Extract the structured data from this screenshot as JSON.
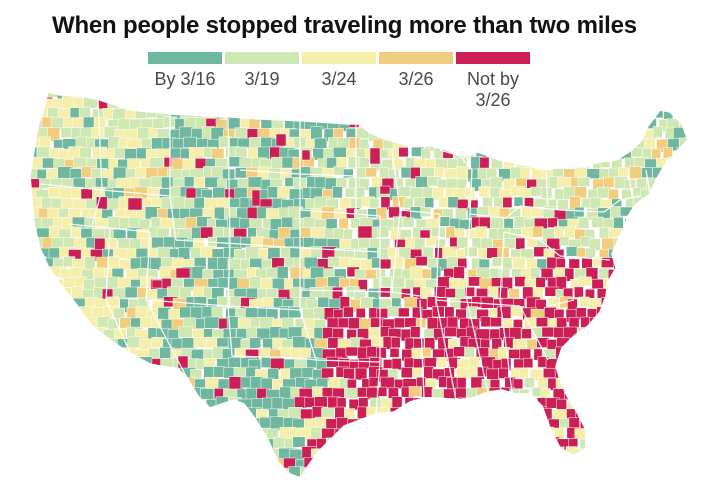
{
  "title": "When people stopped traveling more than two miles",
  "legend": [
    {
      "label": "By 3/16",
      "color": "#6fb79e"
    },
    {
      "label": "3/19",
      "color": "#cfe7b3"
    },
    {
      "label": "3/24",
      "color": "#f6eeab"
    },
    {
      "label": "3/26",
      "color": "#f2cd7e"
    },
    {
      "label": "Not by\n3/26",
      "color": "#cc1f56"
    }
  ],
  "map": {
    "region": "contiguous United States",
    "unit": "county",
    "colors": {
      "by_3_16": "#6fb79e",
      "by_3_19": "#cfe7b3",
      "by_3_24": "#f6eeab",
      "by_3_26": "#f2cd7e",
      "not_by_3_26": "#cc1f56",
      "borders": "#ffffff"
    }
  }
}
